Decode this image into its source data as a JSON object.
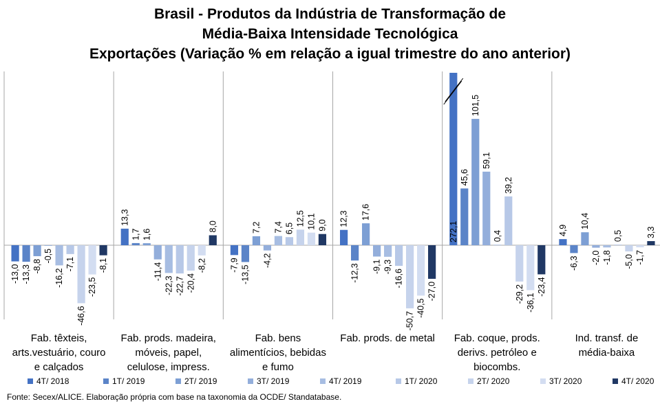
{
  "title": {
    "line1": "Brasil - Produtos da Indústria de Transformação de",
    "line2": "Média-Baixa Intensidade Tecnológica",
    "line3": "Exportações (Variação % em relação a igual trimestre do ano anterior)"
  },
  "source": "Fonte: Secex/ALICE. Elaboração própria  com base na taxonomia da OCDE/ Standatabase.",
  "chart_data": {
    "type": "bar",
    "categories": [
      "Fab. têxteis, arts.vestuário, couro e calçados",
      "Fab. prods. madeira, móveis, papel, celulose, impress.",
      "Fab. bens alimentícios, bebidas e fumo",
      "Fab. prods. de metal",
      "Fab. coque, prods. derivs. petróleo e biocombs.",
      "Ind. transf. de média-baixa"
    ],
    "category_label_lines": [
      [
        "Fab. têxteis,",
        "arts.vestuário, couro",
        "e calçados"
      ],
      [
        "Fab. prods. madeira,",
        "móveis, papel,",
        "celulose, impress."
      ],
      [
        "Fab. bens",
        "alimentícios, bebidas",
        "e fumo"
      ],
      [
        "Fab. prods. de metal"
      ],
      [
        "Fab. coque, prods.",
        "derivs. petróleo e",
        "biocombs."
      ],
      [
        "Ind. transf. de",
        "média-baixa"
      ]
    ],
    "series": [
      {
        "name": "4T/ 2018",
        "color": "#4472c4",
        "values": [
          -13.0,
          13.3,
          -7.9,
          12.3,
          272.1,
          4.9
        ]
      },
      {
        "name": "1T/ 2019",
        "color": "#5b84c8",
        "values": [
          -13.3,
          1.7,
          -13.5,
          -12.3,
          45.6,
          -6.3
        ]
      },
      {
        "name": "2T/ 2019",
        "color": "#7d9fd4",
        "values": [
          -8.8,
          1.6,
          7.2,
          17.6,
          101.5,
          10.4
        ]
      },
      {
        "name": "3T/ 2019",
        "color": "#93aedb",
        "values": [
          -0.5,
          -11.4,
          -4.2,
          -9.1,
          59.1,
          -2.0
        ]
      },
      {
        "name": "4T/ 2019",
        "color": "#a7bde2",
        "values": [
          -16.2,
          -22.3,
          7.4,
          -9.3,
          0.4,
          -1.8
        ]
      },
      {
        "name": "1T/ 2020",
        "color": "#b7c8e7",
        "values": [
          -7.1,
          -22.7,
          6.5,
          -16.6,
          39.2,
          0.5
        ]
      },
      {
        "name": "2T/ 2020",
        "color": "#c6d3ec",
        "values": [
          -46.6,
          -20.4,
          12.5,
          -50.7,
          -29.2,
          -5.0
        ]
      },
      {
        "name": "3T/ 2020",
        "color": "#d3ddf1",
        "values": [
          -23.5,
          -8.2,
          10.1,
          -40.5,
          -36.1,
          -1.7
        ]
      },
      {
        "name": "4T/ 2020",
        "color": "#203864",
        "values": [
          -8.1,
          8.0,
          9.0,
          -27.0,
          -23.4,
          3.3
        ]
      }
    ],
    "value_labels": [
      [
        "-13,0",
        "13,3",
        "-7,9",
        "12,3",
        "272,1",
        "4,9"
      ],
      [
        "-13,3",
        "1,7",
        "-13,5",
        "-12,3",
        "45,6",
        "-6,3"
      ],
      [
        "-8,8",
        "1,6",
        "7,2",
        "17,6",
        "101,5",
        "10,4"
      ],
      [
        "-0,5",
        "-11,4",
        "-4,2",
        "-9,1",
        "59,1",
        "-2,0"
      ],
      [
        "-16,2",
        "-22,3",
        "7,4",
        "-9,3",
        "0,4",
        "-1,8"
      ],
      [
        "-7,1",
        "-22,7",
        "6,5",
        "-16,6",
        "39,2",
        "0,5"
      ],
      [
        "-46,6",
        "-20,4",
        "12,5",
        "-50,7",
        "-29,2",
        "-5,0"
      ],
      [
        "-23,5",
        "-8,2",
        "10,1",
        "-40,5",
        "-36,1",
        "-1,7"
      ],
      [
        "-8,1",
        "8,0",
        "9,0",
        "-27,0",
        "-23,4",
        "3,3"
      ]
    ],
    "axis_break": {
      "series": "4T/ 2018",
      "category": "Fab. coque, prods. derivs. petróleo e biocombs.",
      "value": 272.1
    },
    "ylim": [
      -60,
      140
    ],
    "grid": false,
    "legend_position": "bottom"
  }
}
